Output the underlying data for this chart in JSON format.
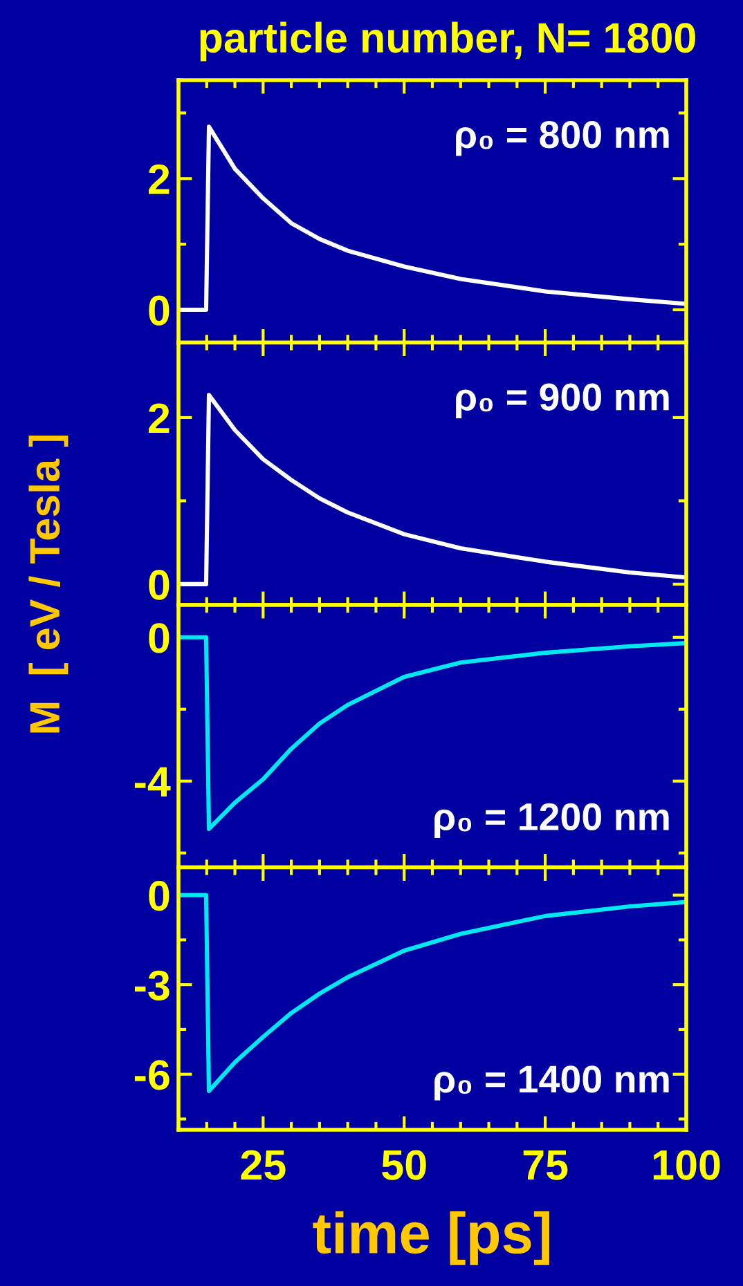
{
  "chart_data": [
    {
      "type": "line",
      "title": "particle number, N= 1800",
      "ylabel": "M  [ eV / Tesla ]",
      "annotations": [
        "ρ₀ = 800 nm"
      ],
      "tick_labels": "y",
      "xlim": [
        10,
        100
      ],
      "xticks": [
        25,
        50,
        75,
        100
      ],
      "ylim": [
        -0.5,
        3.5
      ],
      "yticks": [
        0,
        2
      ],
      "series": [
        {
          "color": "#ffffff",
          "x": [
            10,
            14.9,
            15.4,
            20,
            25,
            30,
            35,
            40,
            50,
            60,
            75,
            90,
            100
          ],
          "values": [
            0,
            0,
            2.79,
            2.15,
            1.7,
            1.32,
            1.08,
            0.9,
            0.66,
            0.47,
            0.28,
            0.16,
            0.09
          ]
        }
      ]
    },
    {
      "type": "line",
      "annotations": [
        "ρ₀ = 900 nm"
      ],
      "tick_labels": "y",
      "xlim": [
        10,
        100
      ],
      "xticks": [
        25,
        50,
        75,
        100
      ],
      "ylim": [
        -0.25,
        2.9
      ],
      "yticks": [
        0,
        2
      ],
      "series": [
        {
          "color": "#ffffff",
          "x": [
            10,
            14.9,
            15.4,
            20,
            25,
            30,
            35,
            40,
            50,
            60,
            75,
            90,
            100
          ],
          "values": [
            0,
            0,
            2.27,
            1.85,
            1.5,
            1.25,
            1.03,
            0.86,
            0.6,
            0.43,
            0.27,
            0.14,
            0.08
          ]
        }
      ]
    },
    {
      "type": "line",
      "annotations": [
        "ρ₀ = 1200 nm"
      ],
      "tick_labels": "y",
      "xlim": [
        10,
        100
      ],
      "xticks": [
        25,
        50,
        75,
        100
      ],
      "ylim": [
        -6.4,
        0.9
      ],
      "yticks": [
        0,
        -4
      ],
      "series": [
        {
          "color": "#00e8f0",
          "x": [
            10,
            14.9,
            15.4,
            20,
            25,
            30,
            35,
            40,
            50,
            60,
            75,
            90,
            100
          ],
          "values": [
            0,
            0,
            -5.33,
            -4.6,
            -3.95,
            -3.1,
            -2.4,
            -1.88,
            -1.1,
            -0.7,
            -0.43,
            -0.25,
            -0.16
          ]
        }
      ]
    },
    {
      "type": "line",
      "annotations": [
        "ρ₀ = 1400 nm"
      ],
      "xlabel": "time [ps]",
      "xlim": [
        10,
        100
      ],
      "xticks": [
        25,
        50,
        75,
        100
      ],
      "ylim": [
        -7.86,
        0.93
      ],
      "yticks": [
        0,
        -3,
        -6
      ],
      "series": [
        {
          "color": "#00e8f0",
          "x": [
            10,
            14.9,
            15.4,
            20,
            25,
            30,
            35,
            40,
            50,
            60,
            75,
            90,
            100
          ],
          "values": [
            0,
            0,
            -6.56,
            -5.6,
            -4.75,
            -3.95,
            -3.3,
            -2.75,
            -1.86,
            -1.3,
            -0.7,
            -0.38,
            -0.23
          ]
        }
      ]
    }
  ]
}
